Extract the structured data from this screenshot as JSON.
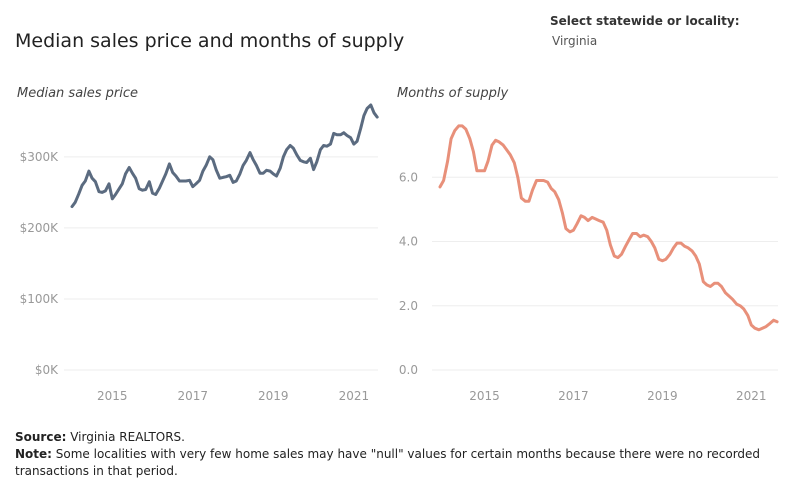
{
  "title": "Median sales price and months of supply",
  "selector": {
    "label": "Select statewide or locality:",
    "value": "Virginia"
  },
  "footer": {
    "source_label": "Source:",
    "source_text": " Virginia REALTORS.",
    "note_label": "Note:",
    "note_text": " Some localities with very few home sales may have \"null\" values for certain months because there were no recorded transactions in that period."
  },
  "colors": {
    "price_line": "#5b6b80",
    "supply_line": "#e8907a",
    "grid": "#eeeeee"
  },
  "chart_data": [
    {
      "type": "line",
      "title": "Median sales price",
      "x_ticks": [
        "2015",
        "2017",
        "2019",
        "2021"
      ],
      "y_ticks": [
        "$0K",
        "$100K",
        "$200K",
        "$300K"
      ],
      "ylim": [
        0,
        380000
      ],
      "xlim": [
        2014.0,
        2021.6
      ],
      "grid": "horizontal",
      "series": [
        {
          "points": [
            [
              2014.0,
              230000
            ],
            [
              2014.08,
              236000
            ],
            [
              2014.17,
              248000
            ],
            [
              2014.25,
              260000
            ],
            [
              2014.33,
              266000
            ],
            [
              2014.42,
              280000
            ],
            [
              2014.5,
              270000
            ],
            [
              2014.58,
              265000
            ],
            [
              2014.67,
              251000
            ],
            [
              2014.75,
              250000
            ],
            [
              2014.83,
              252000
            ],
            [
              2014.92,
              262000
            ],
            [
              2015.0,
              241000
            ],
            [
              2015.08,
              247000
            ],
            [
              2015.17,
              255000
            ],
            [
              2015.25,
              262000
            ],
            [
              2015.33,
              276000
            ],
            [
              2015.42,
              285000
            ],
            [
              2015.5,
              277000
            ],
            [
              2015.58,
              270000
            ],
            [
              2015.67,
              255000
            ],
            [
              2015.75,
              253000
            ],
            [
              2015.83,
              254000
            ],
            [
              2015.92,
              265000
            ],
            [
              2016.0,
              249000
            ],
            [
              2016.08,
              247000
            ],
            [
              2016.17,
              256000
            ],
            [
              2016.25,
              266000
            ],
            [
              2016.33,
              276000
            ],
            [
              2016.42,
              290000
            ],
            [
              2016.5,
              278000
            ],
            [
              2016.58,
              273000
            ],
            [
              2016.67,
              266000
            ],
            [
              2016.75,
              266000
            ],
            [
              2016.83,
              266000
            ],
            [
              2016.92,
              267000
            ],
            [
              2017.0,
              258000
            ],
            [
              2017.08,
              262000
            ],
            [
              2017.17,
              267000
            ],
            [
              2017.25,
              280000
            ],
            [
              2017.33,
              288000
            ],
            [
              2017.42,
              300000
            ],
            [
              2017.5,
              296000
            ],
            [
              2017.58,
              282000
            ],
            [
              2017.67,
              270000
            ],
            [
              2017.75,
              271000
            ],
            [
              2017.83,
              272000
            ],
            [
              2017.92,
              274000
            ],
            [
              2018.0,
              264000
            ],
            [
              2018.08,
              266000
            ],
            [
              2018.17,
              276000
            ],
            [
              2018.25,
              288000
            ],
            [
              2018.33,
              295000
            ],
            [
              2018.42,
              306000
            ],
            [
              2018.5,
              296000
            ],
            [
              2018.58,
              288000
            ],
            [
              2018.67,
              277000
            ],
            [
              2018.75,
              277000
            ],
            [
              2018.83,
              281000
            ],
            [
              2018.92,
              280000
            ],
            [
              2019.0,
              276000
            ],
            [
              2019.08,
              273000
            ],
            [
              2019.17,
              284000
            ],
            [
              2019.25,
              300000
            ],
            [
              2019.33,
              310000
            ],
            [
              2019.42,
              316000
            ],
            [
              2019.5,
              312000
            ],
            [
              2019.58,
              303000
            ],
            [
              2019.67,
              295000
            ],
            [
              2019.75,
              293000
            ],
            [
              2019.83,
              292000
            ],
            [
              2019.92,
              298000
            ],
            [
              2020.0,
              282000
            ],
            [
              2020.08,
              293000
            ],
            [
              2020.17,
              310000
            ],
            [
              2020.25,
              316000
            ],
            [
              2020.33,
              315000
            ],
            [
              2020.42,
              318000
            ],
            [
              2020.5,
              333000
            ],
            [
              2020.58,
              331000
            ],
            [
              2020.67,
              331000
            ],
            [
              2020.75,
              334000
            ],
            [
              2020.83,
              330000
            ],
            [
              2020.92,
              327000
            ],
            [
              2021.0,
              318000
            ],
            [
              2021.08,
              322000
            ],
            [
              2021.17,
              340000
            ],
            [
              2021.25,
              358000
            ],
            [
              2021.33,
              368000
            ],
            [
              2021.42,
              373000
            ],
            [
              2021.5,
              362000
            ],
            [
              2021.58,
              356000
            ]
          ]
        }
      ]
    },
    {
      "type": "line",
      "title": "Months of supply",
      "x_ticks": [
        "2015",
        "2017",
        "2019",
        "2021"
      ],
      "y_ticks": [
        "0.0",
        "2.0",
        "4.0",
        "6.0"
      ],
      "ylim": [
        0,
        8
      ],
      "xlim": [
        2014.0,
        2021.6
      ],
      "grid": "horizontal",
      "series": [
        {
          "points": [
            [
              2014.0,
              5.7
            ],
            [
              2014.08,
              5.9
            ],
            [
              2014.17,
              6.5
            ],
            [
              2014.25,
              7.2
            ],
            [
              2014.33,
              7.45
            ],
            [
              2014.42,
              7.6
            ],
            [
              2014.5,
              7.6
            ],
            [
              2014.58,
              7.5
            ],
            [
              2014.67,
              7.2
            ],
            [
              2014.75,
              6.8
            ],
            [
              2014.83,
              6.2
            ],
            [
              2014.92,
              6.2
            ],
            [
              2015.0,
              6.2
            ],
            [
              2015.08,
              6.5
            ],
            [
              2015.17,
              7.0
            ],
            [
              2015.25,
              7.15
            ],
            [
              2015.33,
              7.1
            ],
            [
              2015.42,
              7.0
            ],
            [
              2015.5,
              6.85
            ],
            [
              2015.58,
              6.7
            ],
            [
              2015.67,
              6.45
            ],
            [
              2015.75,
              6.0
            ],
            [
              2015.83,
              5.35
            ],
            [
              2015.92,
              5.25
            ],
            [
              2016.0,
              5.25
            ],
            [
              2016.08,
              5.6
            ],
            [
              2016.17,
              5.9
            ],
            [
              2016.25,
              5.9
            ],
            [
              2016.33,
              5.9
            ],
            [
              2016.42,
              5.85
            ],
            [
              2016.5,
              5.65
            ],
            [
              2016.58,
              5.55
            ],
            [
              2016.67,
              5.3
            ],
            [
              2016.75,
              4.9
            ],
            [
              2016.83,
              4.4
            ],
            [
              2016.92,
              4.3
            ],
            [
              2017.0,
              4.35
            ],
            [
              2017.08,
              4.55
            ],
            [
              2017.17,
              4.8
            ],
            [
              2017.25,
              4.75
            ],
            [
              2017.33,
              4.65
            ],
            [
              2017.42,
              4.75
            ],
            [
              2017.5,
              4.7
            ],
            [
              2017.58,
              4.65
            ],
            [
              2017.67,
              4.6
            ],
            [
              2017.75,
              4.35
            ],
            [
              2017.83,
              3.9
            ],
            [
              2017.92,
              3.55
            ],
            [
              2018.0,
              3.5
            ],
            [
              2018.08,
              3.6
            ],
            [
              2018.17,
              3.85
            ],
            [
              2018.25,
              4.05
            ],
            [
              2018.33,
              4.25
            ],
            [
              2018.42,
              4.25
            ],
            [
              2018.5,
              4.15
            ],
            [
              2018.58,
              4.2
            ],
            [
              2018.67,
              4.15
            ],
            [
              2018.75,
              4.0
            ],
            [
              2018.83,
              3.8
            ],
            [
              2018.92,
              3.45
            ],
            [
              2019.0,
              3.4
            ],
            [
              2019.08,
              3.45
            ],
            [
              2019.17,
              3.6
            ],
            [
              2019.25,
              3.8
            ],
            [
              2019.33,
              3.95
            ],
            [
              2019.42,
              3.95
            ],
            [
              2019.5,
              3.85
            ],
            [
              2019.58,
              3.8
            ],
            [
              2019.67,
              3.7
            ],
            [
              2019.75,
              3.55
            ],
            [
              2019.83,
              3.3
            ],
            [
              2019.92,
              2.75
            ],
            [
              2020.0,
              2.65
            ],
            [
              2020.08,
              2.6
            ],
            [
              2020.17,
              2.7
            ],
            [
              2020.25,
              2.7
            ],
            [
              2020.33,
              2.6
            ],
            [
              2020.42,
              2.4
            ],
            [
              2020.5,
              2.3
            ],
            [
              2020.58,
              2.2
            ],
            [
              2020.67,
              2.05
            ],
            [
              2020.75,
              2.0
            ],
            [
              2020.83,
              1.9
            ],
            [
              2020.92,
              1.7
            ],
            [
              2021.0,
              1.4
            ],
            [
              2021.08,
              1.3
            ],
            [
              2021.17,
              1.25
            ],
            [
              2021.25,
              1.3
            ],
            [
              2021.33,
              1.35
            ],
            [
              2021.42,
              1.45
            ],
            [
              2021.5,
              1.55
            ],
            [
              2021.58,
              1.5
            ]
          ]
        }
      ]
    }
  ]
}
